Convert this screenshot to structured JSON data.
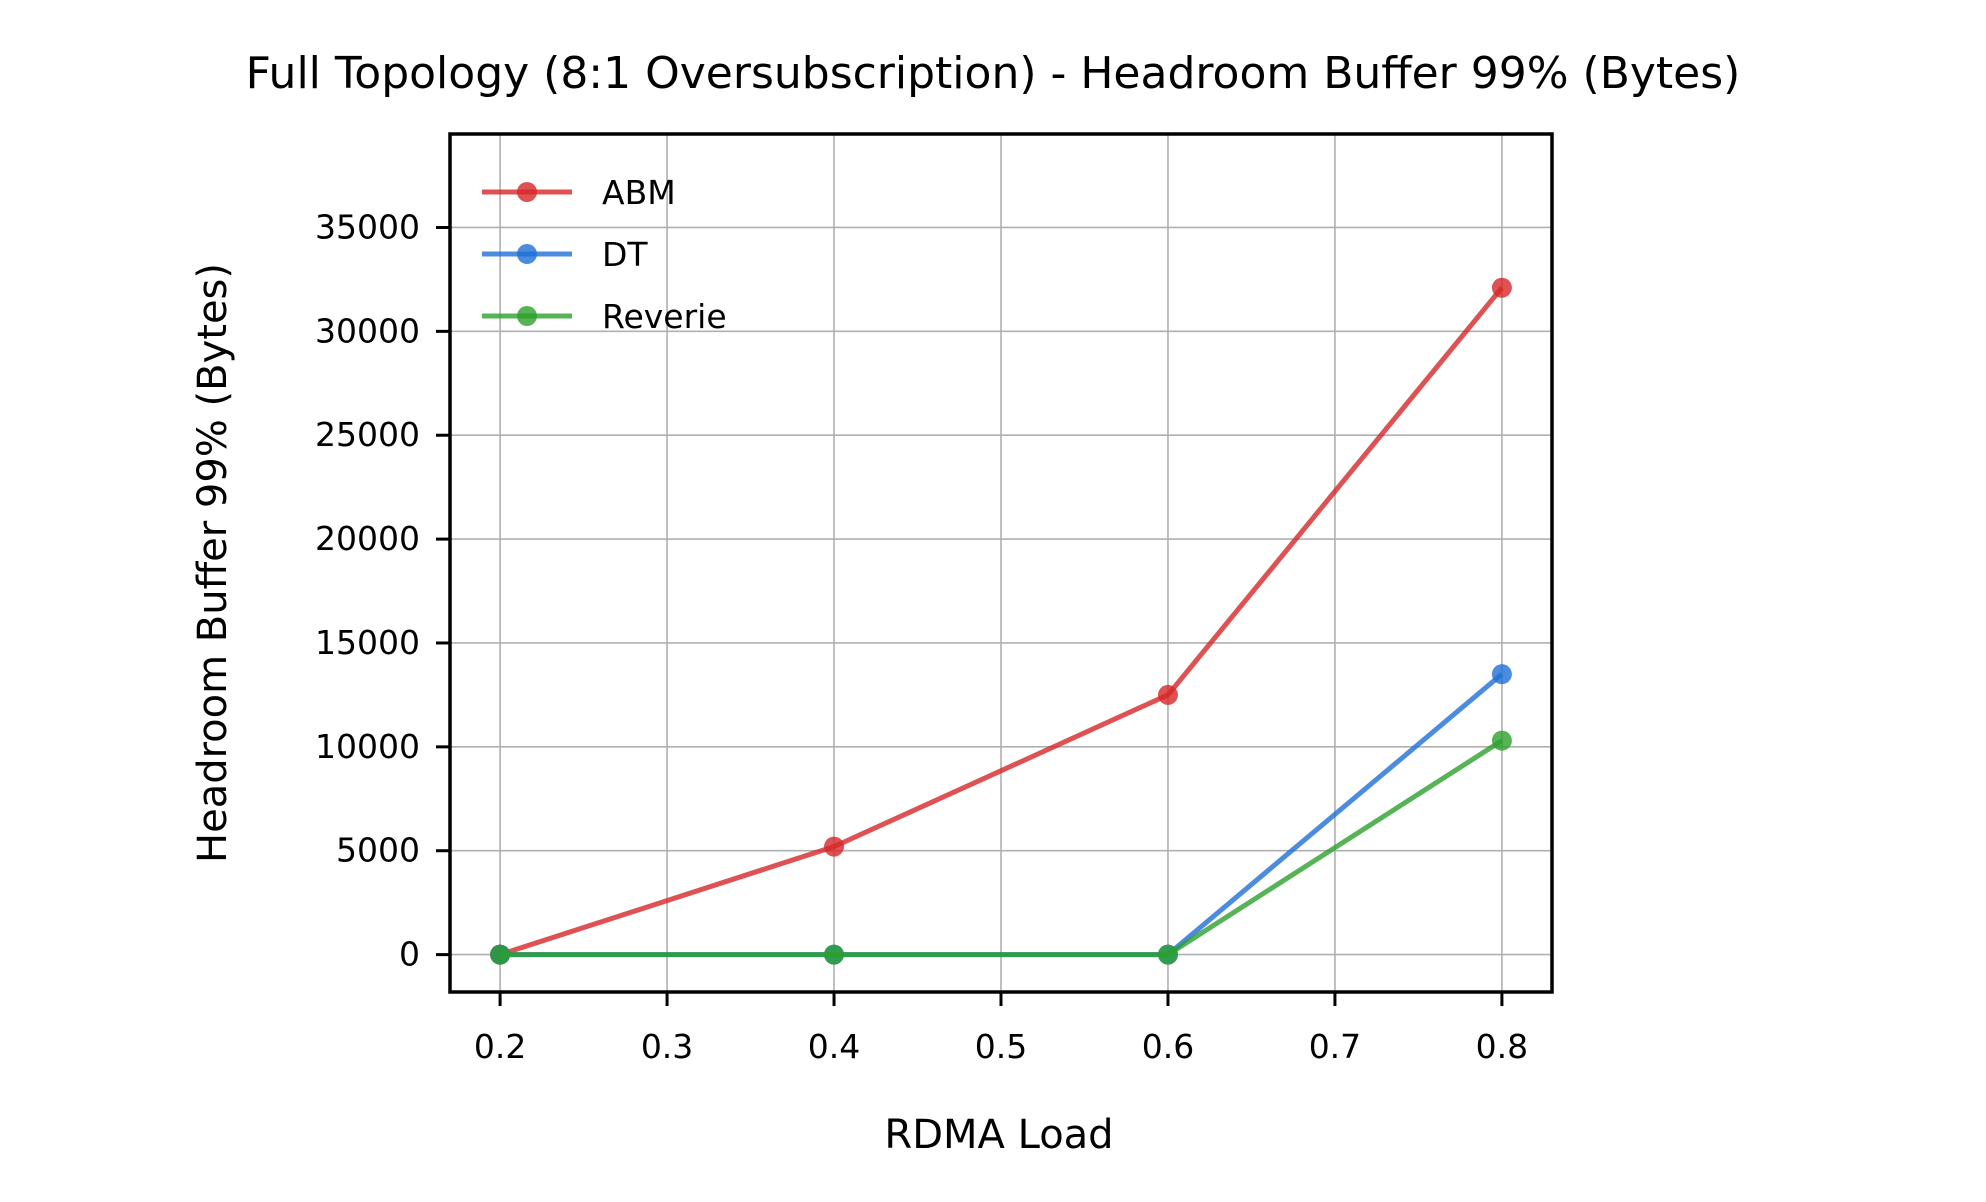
{
  "chart_data": {
    "type": "line",
    "title": "Full Topology (8:1 Oversubscription) - Headroom Buffer 99% (Bytes)",
    "xlabel": "RDMA Load",
    "ylabel": "Headroom Buffer 99% (Bytes)",
    "xlim": [
      0.17,
      0.83
    ],
    "ylim": [
      -1800,
      39500
    ],
    "xticks": [
      0.2,
      0.3,
      0.4,
      0.5,
      0.6,
      0.7,
      0.8
    ],
    "xtick_labels": [
      "0.2",
      "0.3",
      "0.4",
      "0.5",
      "0.6",
      "0.7",
      "0.8"
    ],
    "yticks": [
      0,
      5000,
      10000,
      15000,
      20000,
      25000,
      30000,
      35000
    ],
    "ytick_labels": [
      "0",
      "5000",
      "10000",
      "15000",
      "20000",
      "25000",
      "30000",
      "35000"
    ],
    "grid": true,
    "legend_position": "top-left",
    "x": [
      0.2,
      0.4,
      0.6,
      0.8
    ],
    "series": [
      {
        "name": "ABM",
        "color": "#d62728",
        "values": [
          0,
          5200,
          12500,
          32100
        ]
      },
      {
        "name": "DT",
        "color": "#1f6fd6",
        "values": [
          0,
          0,
          0,
          13500
        ]
      },
      {
        "name": "Reverie",
        "color": "#2ca02c",
        "values": [
          0,
          0,
          0,
          10300
        ]
      }
    ]
  }
}
